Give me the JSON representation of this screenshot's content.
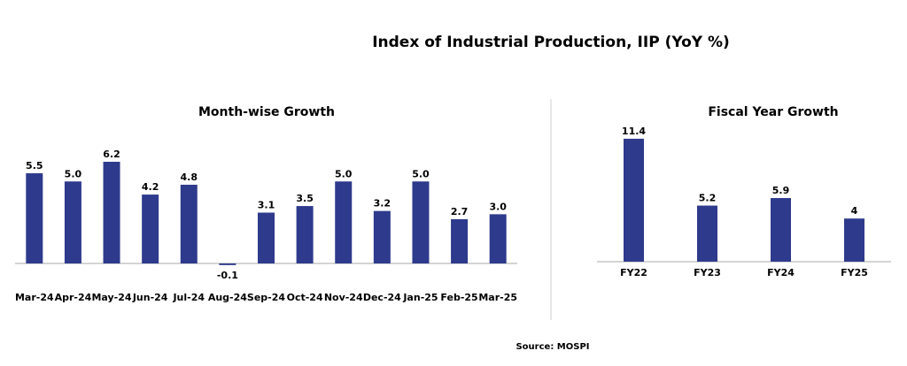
{
  "title": "Index of Industrial Production, IIP (YoY %)",
  "source": "Source: MOSPI",
  "colors": {
    "bar": "#2e3a8c",
    "axis": "#aaaaaa",
    "divider": "#cccccc"
  },
  "chart_data": [
    {
      "type": "bar",
      "title": "Month-wise Growth",
      "categories": [
        "Mar-24",
        "Apr-24",
        "May-24",
        "Jun-24",
        "Jul-24",
        "Aug-24",
        "Sep-24",
        "Oct-24",
        "Nov-24",
        "Dec-24",
        "Jan-25",
        "Feb-25",
        "Mar-25"
      ],
      "values": [
        5.5,
        5.0,
        6.2,
        4.2,
        4.8,
        -0.1,
        3.1,
        3.5,
        5.0,
        3.2,
        5.0,
        2.7,
        3.0
      ],
      "labels": [
        "5.5",
        "5.0",
        "6.2",
        "4.2",
        "4.8",
        "-0.1",
        "3.1",
        "3.5",
        "5.0",
        "3.2",
        "5.0",
        "2.7",
        "3.0"
      ],
      "grid": false
    },
    {
      "type": "bar",
      "title": "Fiscal Year Growth",
      "categories": [
        "FY22",
        "FY23",
        "FY24",
        "FY25"
      ],
      "values": [
        11.4,
        5.2,
        5.9,
        4.0
      ],
      "labels": [
        "11.4",
        "5.2",
        "5.9",
        "4"
      ],
      "grid": false
    }
  ]
}
